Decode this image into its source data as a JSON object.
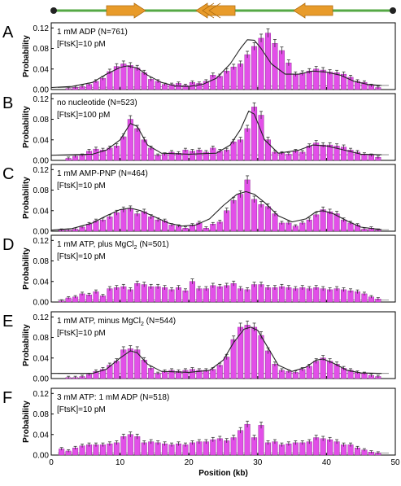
{
  "schematic": {
    "arrow_directions": [
      "right",
      "left",
      "left"
    ],
    "line_color": "#55a845",
    "arrow_color": "#e89b2a",
    "end_marker_color": "#222222"
  },
  "colors": {
    "bar": "#e24fe8",
    "bar_stroke": "#8a1f90",
    "fit": "#222222",
    "baseline": "#777777"
  },
  "shared_axis": {
    "xlabel": "Position (kb)",
    "xticks": [
      0,
      10,
      20,
      30,
      40,
      50
    ],
    "xlim": [
      0,
      50
    ]
  },
  "chart_data": [
    {
      "type": "bar",
      "letter": "A",
      "annotation": [
        "1 mM ADP (N=761)",
        "[FtsK]=10 pM"
      ],
      "ylabel": "Probability",
      "ylim": [
        0,
        0.13
      ],
      "yticks": [
        "0.00",
        "0.04",
        "0.08",
        "0.12"
      ],
      "x": [
        0.5,
        1.5,
        2.5,
        3.5,
        4.5,
        5.5,
        6.5,
        7.5,
        8.5,
        9.5,
        10.5,
        11.5,
        12.5,
        13.5,
        14.5,
        15.5,
        16.5,
        17.5,
        18.5,
        19.5,
        20.5,
        21.5,
        22.5,
        23.5,
        24.5,
        25.5,
        26.5,
        27.5,
        28.5,
        29.5,
        30.5,
        31.5,
        32.5,
        33.5,
        34.5,
        35.5,
        36.5,
        37.5,
        38.5,
        39.5,
        40.5,
        41.5,
        42.5,
        43.5,
        44.5,
        45.5,
        46.5,
        47.5
      ],
      "values": [
        0,
        0,
        0.002,
        0.004,
        0.006,
        0.01,
        0.016,
        0.022,
        0.035,
        0.045,
        0.05,
        0.047,
        0.042,
        0.033,
        0.02,
        0.016,
        0.01,
        0.01,
        0.012,
        0.008,
        0.014,
        0.012,
        0.016,
        0.028,
        0.026,
        0.036,
        0.044,
        0.05,
        0.068,
        0.084,
        0.1,
        0.11,
        0.09,
        0.076,
        0.052,
        0.03,
        0.032,
        0.036,
        0.04,
        0.038,
        0.034,
        0.033,
        0.03,
        0.024,
        0.016,
        0.014,
        0.008,
        0.004
      ],
      "fit": [
        [
          0,
          0.004
        ],
        [
          3,
          0.006
        ],
        [
          6,
          0.014
        ],
        [
          8,
          0.03
        ],
        [
          10,
          0.043
        ],
        [
          11,
          0.046
        ],
        [
          12.5,
          0.042
        ],
        [
          14,
          0.028
        ],
        [
          16,
          0.014
        ],
        [
          18,
          0.007
        ],
        [
          20,
          0.006
        ],
        [
          22,
          0.01
        ],
        [
          24,
          0.022
        ],
        [
          26,
          0.05
        ],
        [
          27.5,
          0.08
        ],
        [
          28.5,
          0.097
        ],
        [
          29.5,
          0.096
        ],
        [
          30.5,
          0.08
        ],
        [
          32,
          0.05
        ],
        [
          34,
          0.03
        ],
        [
          36,
          0.03
        ],
        [
          38,
          0.036
        ],
        [
          40,
          0.034
        ],
        [
          42,
          0.028
        ],
        [
          44,
          0.016
        ],
        [
          46,
          0.01
        ],
        [
          48,
          0.008
        ]
      ]
    },
    {
      "type": "bar",
      "letter": "B",
      "annotation": [
        "no nucleotide (N=523)",
        "[FtsK]=100 pM"
      ],
      "ylabel": "Probability",
      "ylim": [
        0,
        0.13
      ],
      "yticks": [
        "0.00",
        "0.04",
        "0.08",
        "0.12"
      ],
      "x": [
        0.5,
        1.5,
        2.5,
        3.5,
        4.5,
        5.5,
        6.5,
        7.5,
        8.5,
        9.5,
        10.5,
        11.5,
        12.5,
        13.5,
        14.5,
        15.5,
        16.5,
        17.5,
        18.5,
        19.5,
        20.5,
        21.5,
        22.5,
        23.5,
        24.5,
        25.5,
        26.5,
        27.5,
        28.5,
        29.5,
        30.5,
        31.5,
        32.5,
        33.5,
        34.5,
        35.5,
        36.5,
        37.5,
        38.5,
        39.5,
        40.5,
        41.5,
        42.5,
        43.5,
        44.5,
        45.5,
        46.5,
        47.5
      ],
      "values": [
        0,
        0,
        0.004,
        0.008,
        0.01,
        0.018,
        0.022,
        0.02,
        0.024,
        0.028,
        0.046,
        0.08,
        0.062,
        0.04,
        0.024,
        0.01,
        0.012,
        0.016,
        0.014,
        0.02,
        0.018,
        0.02,
        0.016,
        0.024,
        0.018,
        0.02,
        0.036,
        0.04,
        0.062,
        0.104,
        0.088,
        0.04,
        0.016,
        0.014,
        0.012,
        0.018,
        0.016,
        0.028,
        0.034,
        0.03,
        0.03,
        0.028,
        0.026,
        0.02,
        0.016,
        0.012,
        0.01,
        0.006
      ],
      "fit": [
        [
          0,
          0.01
        ],
        [
          6,
          0.012
        ],
        [
          8,
          0.02
        ],
        [
          10,
          0.04
        ],
        [
          11.5,
          0.072
        ],
        [
          12.5,
          0.066
        ],
        [
          14,
          0.03
        ],
        [
          16,
          0.014
        ],
        [
          20,
          0.012
        ],
        [
          24,
          0.014
        ],
        [
          26,
          0.03
        ],
        [
          27.5,
          0.06
        ],
        [
          28.7,
          0.096
        ],
        [
          29.5,
          0.09
        ],
        [
          31,
          0.04
        ],
        [
          33,
          0.014
        ],
        [
          36,
          0.02
        ],
        [
          38,
          0.03
        ],
        [
          40,
          0.028
        ],
        [
          42,
          0.022
        ],
        [
          45,
          0.012
        ],
        [
          48,
          0.011
        ]
      ]
    },
    {
      "type": "bar",
      "letter": "C",
      "annotation": [
        "1 mM AMP-PNP (N=464)",
        "[FtsK]=10 pM"
      ],
      "ylabel": "Probability",
      "ylim": [
        0,
        0.13
      ],
      "yticks": [
        "0.00",
        "0.04",
        "0.08",
        "0.12"
      ],
      "x": [
        0.5,
        1.5,
        2.5,
        3.5,
        4.5,
        5.5,
        6.5,
        7.5,
        8.5,
        9.5,
        10.5,
        11.5,
        12.5,
        13.5,
        14.5,
        15.5,
        16.5,
        17.5,
        18.5,
        19.5,
        20.5,
        21.5,
        22.5,
        23.5,
        24.5,
        25.5,
        26.5,
        27.5,
        28.5,
        29.5,
        30.5,
        31.5,
        32.5,
        33.5,
        34.5,
        35.5,
        36.5,
        37.5,
        38.5,
        39.5,
        40.5,
        41.5,
        42.5,
        43.5,
        44.5,
        45.5,
        46.5,
        47.5
      ],
      "values": [
        0,
        0.002,
        0.002,
        0.004,
        0.008,
        0.014,
        0.02,
        0.022,
        0.028,
        0.036,
        0.042,
        0.044,
        0.034,
        0.038,
        0.028,
        0.022,
        0.02,
        0.012,
        0.01,
        0.006,
        0.012,
        0.016,
        0.006,
        0.014,
        0.018,
        0.04,
        0.06,
        0.072,
        0.1,
        0.062,
        0.052,
        0.048,
        0.034,
        0.016,
        0.016,
        0.01,
        0.016,
        0.022,
        0.032,
        0.042,
        0.038,
        0.034,
        0.022,
        0.016,
        0.012,
        0.004,
        0.006,
        0.002
      ],
      "fit": [
        [
          0,
          0.002
        ],
        [
          3,
          0.005
        ],
        [
          6,
          0.016
        ],
        [
          8,
          0.03
        ],
        [
          10,
          0.042
        ],
        [
          11.5,
          0.045
        ],
        [
          13,
          0.04
        ],
        [
          15,
          0.028
        ],
        [
          17,
          0.016
        ],
        [
          19,
          0.01
        ],
        [
          21,
          0.012
        ],
        [
          23,
          0.024
        ],
        [
          25,
          0.05
        ],
        [
          27,
          0.072
        ],
        [
          28.3,
          0.077
        ],
        [
          29.5,
          0.072
        ],
        [
          31,
          0.056
        ],
        [
          33,
          0.03
        ],
        [
          35,
          0.018
        ],
        [
          37,
          0.024
        ],
        [
          38.5,
          0.038
        ],
        [
          39.5,
          0.04
        ],
        [
          41,
          0.034
        ],
        [
          43,
          0.02
        ],
        [
          45,
          0.008
        ],
        [
          48,
          0.003
        ]
      ]
    },
    {
      "type": "bar",
      "letter": "D",
      "annotation": [
        "1 mM ATP, plus MgCl",
        "[FtsK]=10 pM"
      ],
      "annotation_subscript": "2",
      "annotation_tail": " (N=501)",
      "ylabel": "Probability",
      "ylim": [
        0,
        0.13
      ],
      "yticks": [
        "0.00",
        "0.04",
        "0.08",
        "0.12"
      ],
      "x": [
        0.5,
        1.5,
        2.5,
        3.5,
        4.5,
        5.5,
        6.5,
        7.5,
        8.5,
        9.5,
        10.5,
        11.5,
        12.5,
        13.5,
        14.5,
        15.5,
        16.5,
        17.5,
        18.5,
        19.5,
        20.5,
        21.5,
        22.5,
        23.5,
        24.5,
        25.5,
        26.5,
        27.5,
        28.5,
        29.5,
        30.5,
        31.5,
        32.5,
        33.5,
        34.5,
        35.5,
        36.5,
        37.5,
        38.5,
        39.5,
        40.5,
        41.5,
        42.5,
        43.5,
        44.5,
        45.5,
        46.5,
        47.5
      ],
      "values": [
        0,
        0.002,
        0.008,
        0.01,
        0.016,
        0.014,
        0.02,
        0.012,
        0.026,
        0.028,
        0.03,
        0.024,
        0.036,
        0.034,
        0.03,
        0.03,
        0.028,
        0.024,
        0.028,
        0.022,
        0.04,
        0.026,
        0.026,
        0.032,
        0.03,
        0.032,
        0.036,
        0.026,
        0.024,
        0.034,
        0.034,
        0.028,
        0.028,
        0.03,
        0.028,
        0.026,
        0.028,
        0.026,
        0.028,
        0.026,
        0.024,
        0.026,
        0.024,
        0.022,
        0.02,
        0.016,
        0.01,
        0.006
      ],
      "fit": []
    },
    {
      "type": "bar",
      "letter": "E",
      "annotation": [
        "1 mM ATP, minus MgCl",
        "[FtsK]=10 pM"
      ],
      "annotation_subscript": "2",
      "annotation_tail": " (N=544)",
      "ylabel": "Probability",
      "ylim": [
        0,
        0.13
      ],
      "yticks": [
        "0.00",
        "0.04",
        "0.08",
        "0.12"
      ],
      "x": [
        0.5,
        1.5,
        2.5,
        3.5,
        4.5,
        5.5,
        6.5,
        7.5,
        8.5,
        9.5,
        10.5,
        11.5,
        12.5,
        13.5,
        14.5,
        15.5,
        16.5,
        17.5,
        18.5,
        19.5,
        20.5,
        21.5,
        22.5,
        23.5,
        24.5,
        25.5,
        26.5,
        27.5,
        28.5,
        29.5,
        30.5,
        31.5,
        32.5,
        33.5,
        34.5,
        35.5,
        36.5,
        37.5,
        38.5,
        39.5,
        40.5,
        41.5,
        42.5,
        43.5,
        44.5,
        45.5,
        46.5,
        47.5
      ],
      "values": [
        0,
        0,
        0.002,
        0.002,
        0.004,
        0.008,
        0.014,
        0.018,
        0.026,
        0.034,
        0.056,
        0.058,
        0.056,
        0.036,
        0.02,
        0.01,
        0.014,
        0.016,
        0.014,
        0.016,
        0.018,
        0.016,
        0.016,
        0.018,
        0.026,
        0.042,
        0.076,
        0.1,
        0.104,
        0.1,
        0.084,
        0.054,
        0.028,
        0.016,
        0.014,
        0.012,
        0.018,
        0.024,
        0.034,
        0.04,
        0.034,
        0.028,
        0.02,
        0.016,
        0.012,
        0.01,
        0.006,
        0.004
      ],
      "fit": [
        [
          0,
          0.01
        ],
        [
          6,
          0.01
        ],
        [
          8,
          0.018
        ],
        [
          10,
          0.04
        ],
        [
          11.5,
          0.054
        ],
        [
          12.5,
          0.05
        ],
        [
          14,
          0.028
        ],
        [
          16,
          0.014
        ],
        [
          20,
          0.012
        ],
        [
          23,
          0.016
        ],
        [
          25,
          0.036
        ],
        [
          26.5,
          0.07
        ],
        [
          28,
          0.096
        ],
        [
          29,
          0.1
        ],
        [
          30,
          0.094
        ],
        [
          31.5,
          0.06
        ],
        [
          33,
          0.026
        ],
        [
          35,
          0.014
        ],
        [
          37,
          0.022
        ],
        [
          38.5,
          0.036
        ],
        [
          39.5,
          0.038
        ],
        [
          41,
          0.03
        ],
        [
          43,
          0.016
        ],
        [
          45,
          0.011
        ],
        [
          48,
          0.01
        ]
      ]
    },
    {
      "type": "bar",
      "letter": "F",
      "annotation": [
        "3 mM ATP: 1 mM ADP (N=518)",
        "[FtsK]=10 pM"
      ],
      "ylabel": "Probability",
      "ylim": [
        0,
        0.13
      ],
      "yticks": [
        "0.00",
        "0.04",
        "0.08",
        "0.12"
      ],
      "x": [
        0.5,
        1.5,
        2.5,
        3.5,
        4.5,
        5.5,
        6.5,
        7.5,
        8.5,
        9.5,
        10.5,
        11.5,
        12.5,
        13.5,
        14.5,
        15.5,
        16.5,
        17.5,
        18.5,
        19.5,
        20.5,
        21.5,
        22.5,
        23.5,
        24.5,
        25.5,
        26.5,
        27.5,
        28.5,
        29.5,
        30.5,
        31.5,
        32.5,
        33.5,
        34.5,
        35.5,
        36.5,
        37.5,
        38.5,
        39.5,
        40.5,
        41.5,
        42.5,
        43.5,
        44.5,
        45.5,
        46.5,
        47.5
      ],
      "values": [
        0,
        0.012,
        0.008,
        0.014,
        0.018,
        0.02,
        0.02,
        0.02,
        0.022,
        0.024,
        0.036,
        0.04,
        0.036,
        0.024,
        0.026,
        0.024,
        0.022,
        0.02,
        0.022,
        0.02,
        0.024,
        0.026,
        0.026,
        0.03,
        0.032,
        0.028,
        0.034,
        0.048,
        0.06,
        0.034,
        0.058,
        0.024,
        0.026,
        0.02,
        0.022,
        0.024,
        0.024,
        0.026,
        0.034,
        0.032,
        0.03,
        0.026,
        0.02,
        0.02,
        0.014,
        0.01,
        0.006,
        0.004
      ],
      "fit": []
    }
  ]
}
